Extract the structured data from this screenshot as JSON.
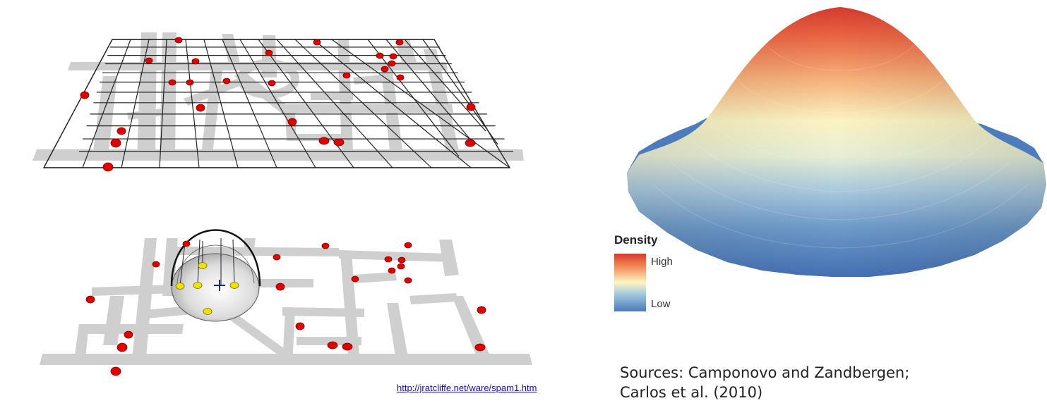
{
  "legend": {
    "title": "Density",
    "high": "High",
    "low": "Low"
  },
  "sources": {
    "line1": "Sources: Camponovo and Zandbergen;",
    "line2": "Carlos et al. (2010)"
  },
  "link": {
    "text": "http://jratcliffe.net/ware/spam1.htm"
  },
  "colors": {
    "street": "#cfcfcf",
    "incident": "#e00000",
    "selected_incident": "#f2e200",
    "grid": "#222222",
    "density_high": "#d7392e",
    "density_mid": "#fbf6c4",
    "density_low": "#4a79bc"
  }
}
